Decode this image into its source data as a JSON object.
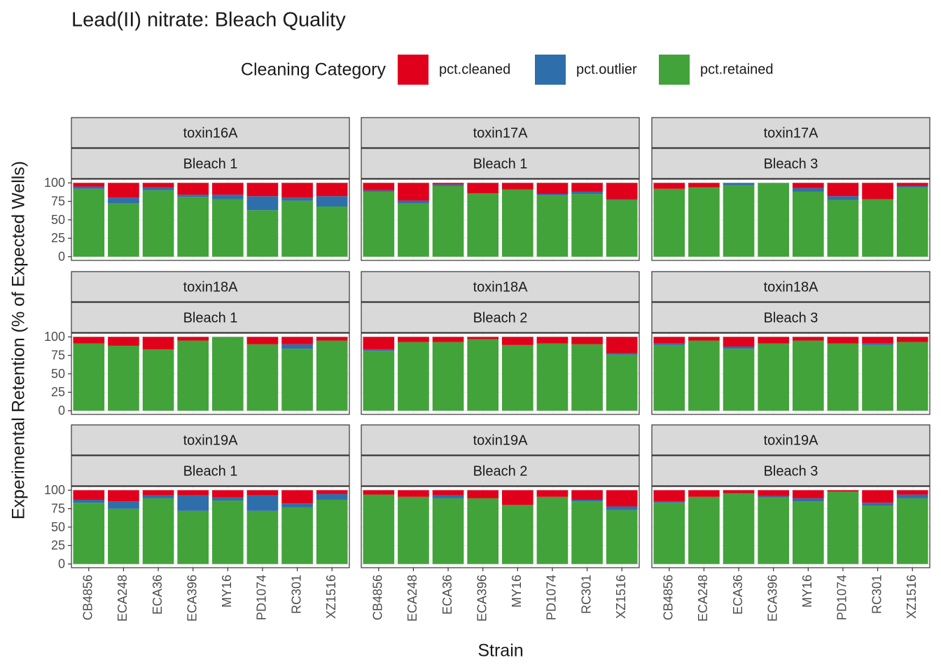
{
  "chart_data": {
    "type": "bar",
    "stacked": true,
    "title": "Lead(II) nitrate: Bleach Quality",
    "legend_title": "Cleaning Category",
    "xlabel": "Strain",
    "ylabel": "Experimental Retention (% of Expected Wells)",
    "categories": [
      "CB4856",
      "ECA248",
      "ECA36",
      "ECA396",
      "MY16",
      "PD1074",
      "RC301",
      "XZ1516"
    ],
    "series": [
      {
        "name": "pct.cleaned",
        "color": "#e0001b"
      },
      {
        "name": "pct.outlier",
        "color": "#2e6eab"
      },
      {
        "name": "pct.retained",
        "color": "#42a33a"
      }
    ],
    "ylim": [
      -5,
      105
    ],
    "yticks": [
      0,
      25,
      50,
      75,
      100
    ],
    "grid": true,
    "panels": [
      {
        "strips": [
          "toxin16A",
          "Bleach 1"
        ],
        "values": [
          [
            5,
            20,
            6,
            16,
            16,
            18,
            20,
            18
          ],
          [
            3,
            8,
            4,
            3,
            6,
            19,
            4,
            14
          ],
          [
            92,
            72,
            90,
            81,
            78,
            63,
            76,
            68
          ]
        ]
      },
      {
        "strips": [
          "toxin17A",
          "Bleach 1"
        ],
        "values": [
          [
            10,
            24,
            2,
            14,
            9,
            15,
            12,
            22
          ],
          [
            2,
            4,
            2,
            0,
            0,
            2,
            3,
            1
          ],
          [
            88,
            72,
            96,
            86,
            91,
            83,
            85,
            77
          ]
        ]
      },
      {
        "strips": [
          "toxin17A",
          "Bleach 3"
        ],
        "values": [
          [
            8,
            6,
            0,
            0,
            7,
            18,
            22,
            4
          ],
          [
            0,
            0,
            3,
            0,
            5,
            5,
            0,
            2
          ],
          [
            92,
            94,
            97,
            100,
            88,
            77,
            78,
            94
          ]
        ]
      },
      {
        "strips": [
          "toxin18A",
          "Bleach 1"
        ],
        "values": [
          [
            9,
            12,
            17,
            5,
            0,
            10,
            10,
            5
          ],
          [
            0,
            0,
            0,
            0,
            0,
            0,
            6,
            0
          ],
          [
            91,
            88,
            83,
            95,
            100,
            90,
            84,
            95
          ]
        ]
      },
      {
        "strips": [
          "toxin18A",
          "Bleach 2"
        ],
        "values": [
          [
            17,
            7,
            7,
            3,
            11,
            9,
            10,
            22
          ],
          [
            2,
            0,
            0,
            0,
            0,
            0,
            0,
            2
          ],
          [
            81,
            93,
            93,
            97,
            89,
            91,
            90,
            76
          ]
        ]
      },
      {
        "strips": [
          "toxin18A",
          "Bleach 3"
        ],
        "values": [
          [
            9,
            5,
            13,
            9,
            5,
            9,
            9,
            7
          ],
          [
            2,
            0,
            3,
            0,
            0,
            0,
            2,
            0
          ],
          [
            89,
            95,
            84,
            91,
            95,
            91,
            89,
            93
          ]
        ]
      },
      {
        "strips": [
          "toxin19A",
          "Bleach 1"
        ],
        "values": [
          [
            13,
            15,
            7,
            7,
            10,
            7,
            18,
            5
          ],
          [
            4,
            10,
            4,
            21,
            4,
            21,
            5,
            8
          ],
          [
            83,
            75,
            89,
            72,
            86,
            72,
            77,
            87
          ]
        ]
      },
      {
        "strips": [
          "toxin19A",
          "Bleach 2"
        ],
        "values": [
          [
            6,
            9,
            7,
            11,
            20,
            9,
            13,
            22
          ],
          [
            0,
            0,
            4,
            0,
            0,
            0,
            2,
            5
          ],
          [
            94,
            91,
            89,
            89,
            80,
            91,
            85,
            73
          ]
        ]
      },
      {
        "strips": [
          "toxin19A",
          "Bleach 3"
        ],
        "values": [
          [
            15,
            9,
            4,
            8,
            11,
            2,
            17,
            6
          ],
          [
            2,
            0,
            0,
            2,
            4,
            0,
            4,
            5
          ],
          [
            83,
            91,
            96,
            90,
            85,
            98,
            79,
            89
          ]
        ]
      }
    ]
  }
}
